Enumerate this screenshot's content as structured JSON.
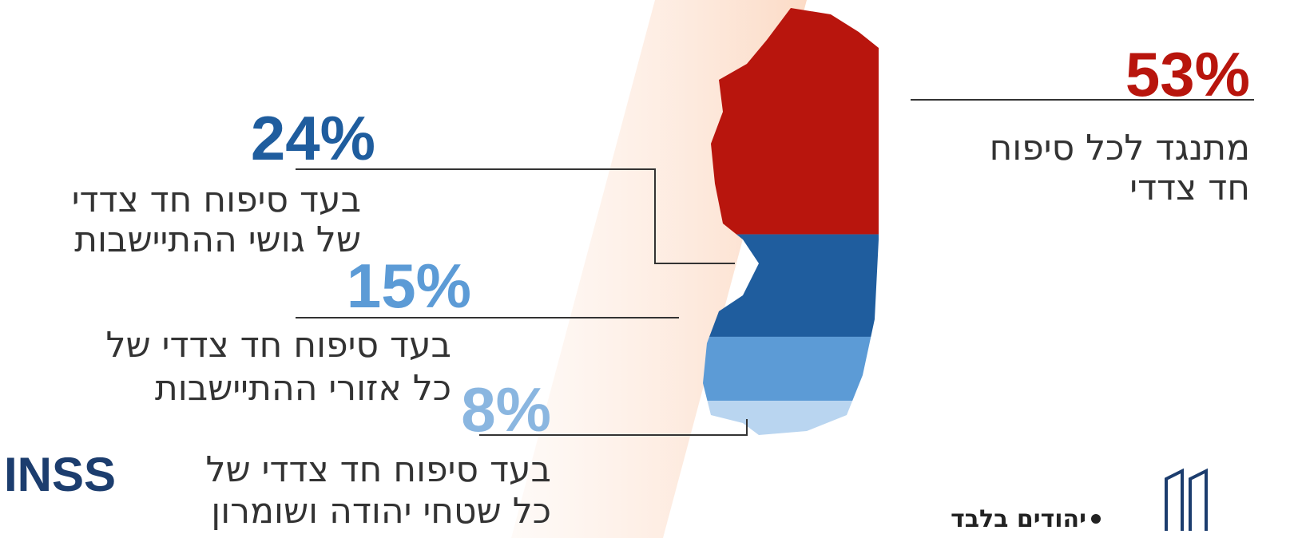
{
  "chart_data": {
    "type": "stacked-shape",
    "categories": [
      [
        "מתנגד לכל סיפוח",
        "חד צדדי"
      ],
      [
        "בעד סיפוח חד צדדי",
        "של גושי ההתיישבות"
      ],
      [
        "בעד סיפוח חד צדדי של",
        "כל אזורי ההתיישבות"
      ],
      [
        "בעד סיפוח חד צדדי של",
        "כל שטחי יהודה ושומרון"
      ]
    ],
    "values": [
      53,
      24,
      15,
      8
    ],
    "value_labels": [
      "53%",
      "24%",
      "15%",
      "8%"
    ],
    "colors": [
      "#b8150d",
      "#1f5d9e",
      "#5c9bd6",
      "#b9d5f0"
    ],
    "footnote": "יהודים בלבד",
    "logo": "INSS"
  }
}
